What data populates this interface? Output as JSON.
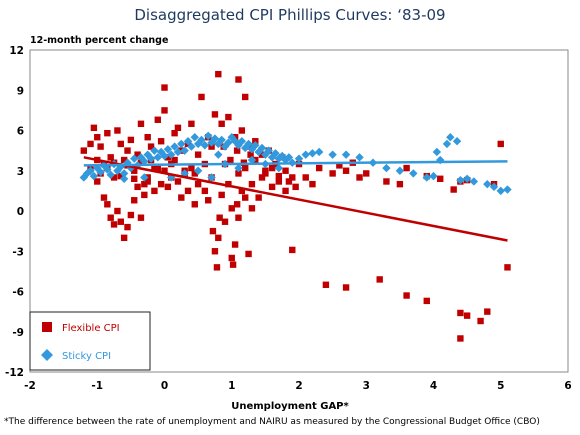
{
  "colors": {
    "flexible": "#c00000",
    "sticky": "#3399dd",
    "title": "#1f3a5f"
  },
  "chart_data": {
    "type": "scatter",
    "title": "Disaggregated CPI Phillips Curves: ‘83-09",
    "ylabel": "12-month percent change",
    "xlabel": "Unemployment GAP*",
    "footnote": "*The difference between the rate of unemployment and NAIRU as measured by the Congressional Budget Office (CBO)",
    "xlim": [
      -2,
      6
    ],
    "ylim": [
      -12,
      12
    ],
    "xticks": [
      "-2",
      "-1",
      "0",
      "1",
      "2",
      "3",
      "4",
      "5",
      "6"
    ],
    "yticks": [
      "12",
      "9",
      "6",
      "3",
      "0",
      "-3",
      "-6",
      "-9",
      "-12"
    ],
    "grid": false,
    "legend_position": "bottom-left",
    "series": [
      {
        "name": "Flexible CPI",
        "marker": "square",
        "color": "#c00000",
        "trend": [
          [
            -1.2,
            4.0
          ],
          [
            5.1,
            -2.2
          ]
        ],
        "points": [
          [
            -1.2,
            4.5
          ],
          [
            -1.1,
            5.0
          ],
          [
            -1.05,
            6.2
          ],
          [
            -1.0,
            5.5
          ],
          [
            -0.95,
            4.8
          ],
          [
            -0.9,
            3.5
          ],
          [
            -0.85,
            5.8
          ],
          [
            -0.8,
            4.0
          ],
          [
            -0.75,
            2.5
          ],
          [
            -0.7,
            6.0
          ],
          [
            -0.65,
            5.0
          ],
          [
            -0.6,
            3.8
          ],
          [
            -0.55,
            4.5
          ],
          [
            -0.5,
            5.3
          ],
          [
            -0.45,
            3.0
          ],
          [
            -0.4,
            4.2
          ],
          [
            -0.35,
            6.5
          ],
          [
            -0.3,
            2.0
          ],
          [
            -0.25,
            5.5
          ],
          [
            -0.2,
            4.8
          ],
          [
            -0.15,
            3.3
          ],
          [
            -0.1,
            6.8
          ],
          [
            -0.05,
            5.2
          ],
          [
            0.0,
            7.5
          ],
          [
            0.0,
            9.2
          ],
          [
            0.05,
            4.0
          ],
          [
            0.1,
            3.5
          ],
          [
            0.15,
            5.8
          ],
          [
            0.2,
            6.2
          ],
          [
            0.25,
            4.5
          ],
          [
            0.3,
            3.0
          ],
          [
            0.35,
            5.0
          ],
          [
            0.4,
            6.5
          ],
          [
            0.45,
            2.8
          ],
          [
            0.5,
            4.2
          ],
          [
            0.55,
            8.5
          ],
          [
            0.6,
            3.5
          ],
          [
            0.65,
            5.5
          ],
          [
            0.7,
            4.8
          ],
          [
            0.75,
            7.2
          ],
          [
            -1.0,
            2.2
          ],
          [
            -0.9,
            1.0
          ],
          [
            -0.85,
            0.5
          ],
          [
            -0.8,
            -0.5
          ],
          [
            -0.75,
            -1.0
          ],
          [
            -0.7,
            0.0
          ],
          [
            -0.65,
            -0.8
          ],
          [
            -0.6,
            -2.0
          ],
          [
            -0.55,
            -1.2
          ],
          [
            -0.5,
            -0.3
          ],
          [
            -0.45,
            0.8
          ],
          [
            -0.4,
            1.8
          ],
          [
            -0.35,
            -0.5
          ],
          [
            -0.3,
            1.2
          ],
          [
            -0.25,
            2.5
          ],
          [
            -0.2,
            3.8
          ],
          [
            -0.15,
            1.5
          ],
          [
            -0.1,
            3.2
          ],
          [
            -0.05,
            2.0
          ],
          [
            0.0,
            3.0
          ],
          [
            0.05,
            1.8
          ],
          [
            0.1,
            2.5
          ],
          [
            0.15,
            3.8
          ],
          [
            0.2,
            2.2
          ],
          [
            0.25,
            1.0
          ],
          [
            0.3,
            2.8
          ],
          [
            0.35,
            1.5
          ],
          [
            0.4,
            3.2
          ],
          [
            0.45,
            0.5
          ],
          [
            0.5,
            2.0
          ],
          [
            -1.1,
            3.2
          ],
          [
            -1.0,
            3.8
          ],
          [
            -0.95,
            2.8
          ],
          [
            -0.85,
            3.2
          ],
          [
            -0.75,
            3.6
          ],
          [
            -0.65,
            2.6
          ],
          [
            -0.55,
            3.4
          ],
          [
            -0.45,
            2.4
          ],
          [
            -0.35,
            3.6
          ],
          [
            -0.25,
            2.2
          ],
          [
            0.6,
            1.5
          ],
          [
            0.65,
            0.8
          ],
          [
            0.7,
            2.5
          ],
          [
            0.72,
            -1.5
          ],
          [
            0.75,
            -3.0
          ],
          [
            0.78,
            -4.2
          ],
          [
            0.8,
            -2.0
          ],
          [
            0.82,
            -0.5
          ],
          [
            0.85,
            1.2
          ],
          [
            0.9,
            3.5
          ],
          [
            0.95,
            2.0
          ],
          [
            1.0,
            -3.5
          ],
          [
            1.02,
            -4.0
          ],
          [
            1.05,
            -2.5
          ],
          [
            1.08,
            0.5
          ],
          [
            1.1,
            2.8
          ],
          [
            1.15,
            1.5
          ],
          [
            1.2,
            3.2
          ],
          [
            1.25,
            -3.2
          ],
          [
            1.3,
            2.0
          ],
          [
            1.35,
            3.8
          ],
          [
            1.4,
            1.0
          ],
          [
            1.45,
            2.5
          ],
          [
            1.5,
            3.0
          ],
          [
            1.55,
            4.5
          ],
          [
            1.6,
            1.8
          ],
          [
            1.65,
            3.5
          ],
          [
            1.7,
            2.2
          ],
          [
            1.75,
            4.0
          ],
          [
            1.8,
            1.5
          ],
          [
            0.8,
            10.2
          ],
          [
            1.1,
            9.8
          ],
          [
            1.2,
            8.5
          ],
          [
            0.85,
            6.5
          ],
          [
            0.95,
            7.0
          ],
          [
            1.05,
            5.5
          ],
          [
            1.15,
            6.0
          ],
          [
            1.25,
            4.8
          ],
          [
            1.35,
            5.2
          ],
          [
            1.45,
            4.2
          ],
          [
            0.9,
            -0.8
          ],
          [
            1.0,
            0.2
          ],
          [
            1.1,
            -0.5
          ],
          [
            1.2,
            1.0
          ],
          [
            1.3,
            0.2
          ],
          [
            0.88,
            4.8
          ],
          [
            0.98,
            3.8
          ],
          [
            1.08,
            4.5
          ],
          [
            1.18,
            3.6
          ],
          [
            1.28,
            4.2
          ],
          [
            1.5,
            2.8
          ],
          [
            1.6,
            3.2
          ],
          [
            1.7,
            2.6
          ],
          [
            1.8,
            3.0
          ],
          [
            1.85,
            2.2
          ],
          [
            1.9,
            2.5
          ],
          [
            1.95,
            1.8
          ],
          [
            2.0,
            3.5
          ],
          [
            2.1,
            2.5
          ],
          [
            2.2,
            2.0
          ],
          [
            2.3,
            3.2
          ],
          [
            2.5,
            2.8
          ],
          [
            2.7,
            3.0
          ],
          [
            1.9,
            -2.9
          ],
          [
            2.4,
            -5.5
          ],
          [
            2.7,
            -5.7
          ],
          [
            3.2,
            -5.1
          ],
          [
            3.6,
            -6.3
          ],
          [
            3.9,
            -6.7
          ],
          [
            4.4,
            -9.5
          ],
          [
            4.4,
            -7.6
          ],
          [
            4.5,
            -7.8
          ],
          [
            4.7,
            -8.2
          ],
          [
            4.8,
            -7.5
          ],
          [
            4.4,
            2.2
          ],
          [
            4.5,
            2.3
          ],
          [
            5.0,
            5.0
          ],
          [
            5.1,
            -4.2
          ],
          [
            4.9,
            2.0
          ],
          [
            3.0,
            2.8
          ],
          [
            3.3,
            2.2
          ],
          [
            3.6,
            3.2
          ],
          [
            3.9,
            2.6
          ],
          [
            2.6,
            3.4
          ],
          [
            2.9,
            2.5
          ],
          [
            3.5,
            2.0
          ],
          [
            4.1,
            2.4
          ],
          [
            4.3,
            1.6
          ],
          [
            2.8,
            3.6
          ]
        ]
      },
      {
        "name": "Sticky CPI",
        "marker": "diamond",
        "color": "#3399dd",
        "trend": [
          [
            -1.2,
            3.4
          ],
          [
            5.1,
            3.7
          ]
        ],
        "points": [
          [
            -1.2,
            2.5
          ],
          [
            -1.15,
            2.8
          ],
          [
            -1.1,
            3.0
          ],
          [
            -1.05,
            2.6
          ],
          [
            -1.0,
            3.2
          ],
          [
            -0.95,
            2.9
          ],
          [
            -0.9,
            3.4
          ],
          [
            -0.85,
            3.1
          ],
          [
            -0.8,
            2.7
          ],
          [
            -0.75,
            3.5
          ],
          [
            -0.7,
            3.0
          ],
          [
            -0.65,
            3.3
          ],
          [
            -0.6,
            2.8
          ],
          [
            -0.55,
            3.6
          ],
          [
            -0.5,
            3.2
          ],
          [
            -0.45,
            3.9
          ],
          [
            -0.4,
            3.4
          ],
          [
            -0.35,
            4.0
          ],
          [
            -0.3,
            3.7
          ],
          [
            -0.25,
            4.2
          ],
          [
            -0.2,
            3.9
          ],
          [
            -0.15,
            4.5
          ],
          [
            -0.1,
            4.0
          ],
          [
            -0.05,
            4.4
          ],
          [
            0.0,
            4.1
          ],
          [
            0.05,
            4.6
          ],
          [
            0.1,
            4.2
          ],
          [
            0.15,
            4.8
          ],
          [
            0.2,
            4.4
          ],
          [
            0.25,
            5.0
          ],
          [
            0.3,
            4.5
          ],
          [
            0.35,
            5.2
          ],
          [
            0.4,
            4.8
          ],
          [
            0.45,
            5.5
          ],
          [
            0.5,
            5.0
          ],
          [
            0.55,
            5.3
          ],
          [
            0.6,
            4.9
          ],
          [
            0.65,
            5.6
          ],
          [
            0.7,
            5.1
          ],
          [
            0.75,
            5.4
          ],
          [
            0.8,
            5.0
          ],
          [
            0.85,
            5.3
          ],
          [
            0.9,
            4.8
          ],
          [
            0.95,
            5.1
          ],
          [
            1.0,
            5.5
          ],
          [
            1.05,
            5.2
          ],
          [
            1.1,
            4.9
          ],
          [
            1.15,
            5.2
          ],
          [
            1.2,
            4.7
          ],
          [
            1.25,
            5.0
          ],
          [
            1.3,
            4.6
          ],
          [
            1.35,
            4.9
          ],
          [
            1.4,
            4.4
          ],
          [
            1.45,
            4.7
          ],
          [
            1.5,
            4.2
          ],
          [
            1.55,
            4.5
          ],
          [
            1.6,
            4.0
          ],
          [
            1.65,
            4.3
          ],
          [
            1.7,
            3.9
          ],
          [
            1.75,
            4.1
          ],
          [
            1.8,
            3.8
          ],
          [
            1.85,
            4.0
          ],
          [
            1.9,
            3.6
          ],
          [
            2.0,
            3.9
          ],
          [
            2.1,
            4.2
          ],
          [
            2.2,
            4.3
          ],
          [
            2.3,
            4.4
          ],
          [
            2.5,
            4.2
          ],
          [
            2.7,
            4.2
          ],
          [
            2.9,
            4.0
          ],
          [
            3.1,
            3.6
          ],
          [
            3.3,
            3.2
          ],
          [
            3.5,
            3.0
          ],
          [
            3.7,
            2.8
          ],
          [
            3.9,
            2.5
          ],
          [
            4.0,
            2.6
          ],
          [
            4.05,
            4.4
          ],
          [
            4.1,
            3.8
          ],
          [
            4.2,
            5.0
          ],
          [
            4.25,
            5.5
          ],
          [
            4.35,
            5.2
          ],
          [
            4.4,
            2.3
          ],
          [
            4.5,
            2.4
          ],
          [
            4.6,
            2.2
          ],
          [
            4.8,
            2.0
          ],
          [
            4.9,
            1.8
          ],
          [
            5.0,
            1.5
          ],
          [
            5.1,
            1.6
          ],
          [
            0.1,
            2.5
          ],
          [
            0.3,
            2.8
          ],
          [
            0.5,
            3.0
          ],
          [
            0.7,
            2.5
          ],
          [
            0.9,
            3.5
          ],
          [
            1.1,
            3.2
          ],
          [
            1.3,
            3.8
          ],
          [
            1.5,
            3.5
          ],
          [
            1.7,
            3.2
          ],
          [
            -0.3,
            2.5
          ],
          [
            -0.6,
            2.4
          ],
          [
            0.8,
            4.2
          ]
        ]
      }
    ]
  }
}
